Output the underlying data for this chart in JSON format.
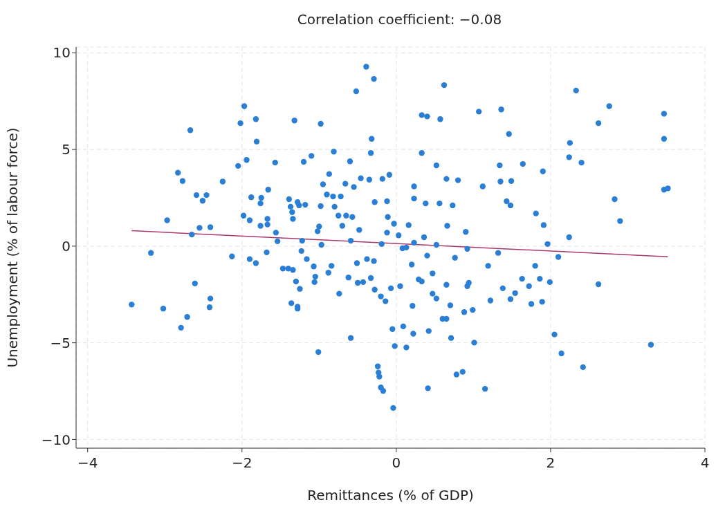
{
  "chart_data": {
    "type": "scatter",
    "title": "Correlation coefficient: −0.08",
    "xlabel": "Remittances (% of GDP)",
    "ylabel": "Unemployment (% of labour force)",
    "xlim": [
      -4.15,
      4
    ],
    "xticks": [
      -4,
      -2,
      0,
      2,
      4
    ],
    "ylim": [
      -10.45,
      10.3
    ],
    "yticks": [
      10,
      5,
      0,
      -5,
      -10
    ],
    "grid": true,
    "legend": false,
    "series": [
      {
        "marker": "circle",
        "color": "#2a7fd4",
        "x": [
          -3.43,
          -3.18,
          -3.02,
          -2.97,
          -2.83,
          -2.77,
          -2.79,
          -2.71,
          -2.67,
          -2.65,
          -2.61,
          -2.59,
          -2.55,
          -2.51,
          -2.46,
          -2.41,
          -2.41,
          -2.42,
          -2.25,
          -2.13,
          -2.05,
          -2.02,
          -1.97,
          -1.98,
          -1.94,
          -1.9,
          -1.88,
          -1.9,
          -1.82,
          -1.81,
          -1.82,
          -1.76,
          -1.75,
          -1.76,
          -1.67,
          -1.66,
          -1.67,
          -1.68,
          -1.57,
          -1.56,
          -1.54,
          -1.47,
          -1.4,
          -1.39,
          -1.37,
          -1.36,
          -1.35,
          -1.34,
          -1.34,
          -1.32,
          -1.3,
          -1.28,
          -1.28,
          -1.28,
          -1.26,
          -1.25,
          -1.22,
          -1.23,
          -1.2,
          -1.18,
          -1.16,
          -1.1,
          -1.07,
          -1.06,
          -1.05,
          -1.02,
          -1.01,
          -1.0,
          -0.98,
          -0.98,
          -0.97,
          -0.95,
          -0.9,
          -0.87,
          -0.88,
          -0.84,
          -0.82,
          -0.81,
          -0.8,
          -0.75,
          -0.74,
          -0.72,
          -0.7,
          -0.66,
          -0.65,
          -0.62,
          -0.6,
          -0.59,
          -0.59,
          -0.57,
          -0.55,
          -0.52,
          -0.51,
          -0.5,
          -0.48,
          -0.46,
          -0.43,
          -0.39,
          -0.38,
          -0.35,
          -0.33,
          -0.33,
          -0.32,
          -0.29,
          -0.28,
          -0.29,
          -0.28,
          -0.24,
          -0.23,
          -0.22,
          -0.2,
          -0.17,
          -0.2,
          -0.18,
          -0.14,
          -0.12,
          -0.09,
          -0.07,
          -0.05,
          -0.04,
          -0.02,
          0.03,
          0.05,
          0.08,
          0.09,
          0.13,
          0.16,
          0.23,
          0.21,
          0.23,
          0.23,
          0.22,
          0.33,
          0.33,
          0.4,
          0.41,
          0.42,
          0.47,
          0.52,
          0.52,
          0.47,
          0.57,
          0.62,
          0.65,
          0.7,
          0.71,
          0.78,
          0.86,
          0.76,
          0.66,
          0.65,
          0.73,
          0.8,
          0.9,
          0.92,
          0.94,
          0.99,
          1.01,
          1.07,
          1.12,
          1.15,
          1.19,
          1.22,
          1.32,
          1.34,
          1.35,
          1.36,
          1.38,
          1.43,
          1.46,
          1.48,
          1.49,
          1.48,
          1.54,
          1.64,
          1.63,
          1.72,
          1.75,
          1.81,
          1.8,
          1.86,
          1.89,
          1.9,
          1.91,
          1.96,
          1.99,
          2.05,
          2.1,
          2.14,
          2.24,
          2.25,
          2.24,
          2.33,
          2.4,
          2.42,
          2.62,
          2.62,
          2.76,
          2.83,
          2.9,
          3.3,
          3.47,
          3.47,
          3.47,
          3.52,
          -0.11,
          -0.03,
          -0.12,
          -0.19,
          0.13,
          0.2,
          0.29,
          0.33,
          0.36,
          0.38,
          0.56,
          0.4,
          0.52,
          0.65,
          0.92,
          0.88,
          0.6
        ],
        "values": [
          -3.02,
          -0.35,
          -3.23,
          1.34,
          3.8,
          3.37,
          -4.22,
          -3.66,
          6.0,
          0.6,
          -1.93,
          2.64,
          0.95,
          2.35,
          2.64,
          0.98,
          -2.71,
          -3.16,
          3.34,
          -0.53,
          4.15,
          6.36,
          7.24,
          1.58,
          4.46,
          1.34,
          2.53,
          -0.67,
          6.57,
          5.41,
          -0.88,
          2.21,
          2.5,
          1.05,
          1.41,
          2.92,
          1.12,
          -0.32,
          4.32,
          0.7,
          0.25,
          -1.16,
          -1.16,
          2.43,
          2.04,
          -2.95,
          1.76,
          -1.23,
          1.41,
          6.5,
          -1.83,
          -3.13,
          -3.23,
          2.28,
          2.11,
          -2.21,
          0.28,
          -0.25,
          4.36,
          2.14,
          -0.67,
          4.67,
          -1.05,
          -1.86,
          -1.58,
          0.77,
          -5.48,
          1.02,
          6.33,
          2.07,
          0.07,
          3.2,
          2.67,
          3.73,
          -1.37,
          -1.02,
          2.57,
          4.89,
          2.04,
          1.58,
          -2.46,
          2.57,
          1.05,
          3.23,
          1.58,
          -1.62,
          4.39,
          -4.75,
          0.28,
          1.51,
          3.06,
          8.01,
          -0.88,
          -1.9,
          0.84,
          3.51,
          -1.86,
          9.28,
          -0.67,
          3.44,
          4.82,
          -1.65,
          5.55,
          8.65,
          2.28,
          -0.77,
          -2.25,
          -6.22,
          -6.54,
          -6.75,
          -7.31,
          -7.49,
          -2.6,
          3.48,
          -2.85,
          2.32,
          3.69,
          -2.18,
          -4.29,
          -8.37,
          -5.17,
          0.56,
          -2.07,
          -0.11,
          -4.15,
          -5.24,
          1.09,
          0.18,
          -3.09,
          3.09,
          2.46,
          -4.53,
          4.82,
          6.78,
          6.71,
          -7.35,
          -4.39,
          -1.41,
          4.18,
          0.07,
          -2.46,
          6.57,
          8.33,
          -3.76,
          -3.06,
          -4.75,
          -6.64,
          -6.5,
          -0.6,
          1.05,
          3.48,
          2.11,
          3.41,
          0.74,
          -0.14,
          -1.9,
          -3.3,
          -4.99,
          6.96,
          3.09,
          -7.38,
          -1.02,
          -2.81,
          -0.35,
          4.18,
          3.34,
          7.07,
          -2.18,
          2.32,
          5.8,
          2.11,
          3.37,
          -2.74,
          -2.43,
          4.25,
          -1.69,
          -2.07,
          -2.99,
          1.69,
          -1.02,
          -1.69,
          -2.88,
          3.87,
          1.09,
          0.11,
          -1.86,
          -4.57,
          -0.56,
          -5.55,
          4.6,
          5.34,
          0.46,
          8.05,
          4.32,
          -6.26,
          6.36,
          -1.97,
          7.24,
          2.43,
          1.3,
          -5.1,
          6.85,
          5.55,
          2.92,
          2.99,
          1.51,
          1.16,
          0.7,
          0.11,
          -0.07,
          -0.95,
          -1.72,
          -1.83,
          0.46,
          2.21,
          2.21,
          -0.49,
          -2.71,
          -2.0,
          -2.07,
          -3.41,
          -3.76
        ]
      },
      {
        "type": "line",
        "color": "#a8386a",
        "x": [
          -3.43,
          3.52
        ],
        "values": [
          0.8,
          -0.55
        ]
      }
    ]
  }
}
